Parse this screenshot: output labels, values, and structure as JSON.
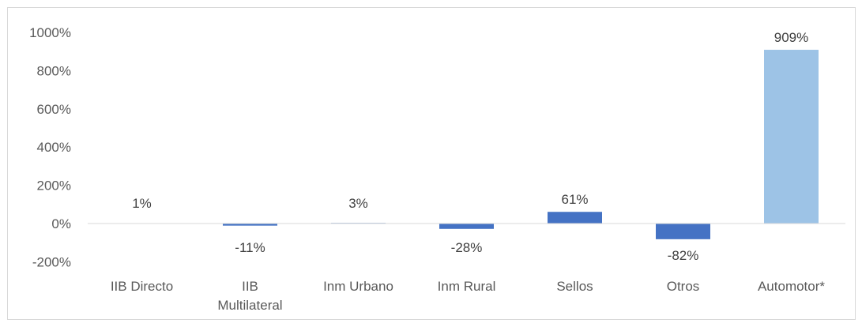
{
  "chart_data": {
    "type": "bar",
    "title": "",
    "xlabel": "",
    "ylabel": "",
    "ylim": [
      -200,
      1000
    ],
    "y_ticks": [
      -200,
      0,
      200,
      400,
      600,
      800,
      1000
    ],
    "y_tick_labels": [
      "-200%",
      "0%",
      "200%",
      "400%",
      "600%",
      "800%",
      "1000%"
    ],
    "categories": [
      [
        "IIB Directo"
      ],
      [
        "IIB",
        "Multilateral"
      ],
      [
        "Inm Urbano"
      ],
      [
        "Inm Rural"
      ],
      [
        "Sellos"
      ],
      [
        "Otros"
      ],
      [
        "Automotor*"
      ]
    ],
    "values": [
      1,
      -11,
      3,
      -28,
      61,
      -82,
      909
    ],
    "data_labels": [
      "1%",
      "-11%",
      "3%",
      "-28%",
      "61%",
      "-82%",
      "909%"
    ],
    "colors": [
      "#4472c4",
      "#4472c4",
      "#4472c4",
      "#4472c4",
      "#4472c4",
      "#4472c4",
      "#9dc3e6"
    ],
    "grid": false,
    "axis_color": "#d9d9d9"
  }
}
